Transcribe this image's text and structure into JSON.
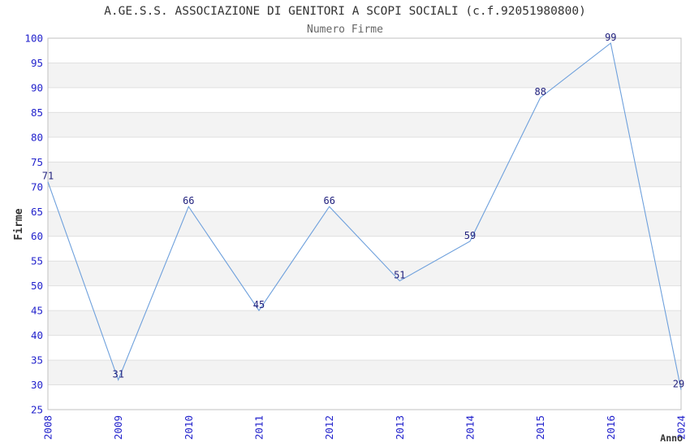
{
  "chart_data": {
    "type": "line",
    "title": "A.GE.S.S. ASSOCIAZIONE DI GENITORI A SCOPI SOCIALI (c.f.92051980800)",
    "subtitle": "Numero Firme",
    "xlabel": "Anno",
    "ylabel": "Firme",
    "categories": [
      "2008",
      "2009",
      "2010",
      "2011",
      "2012",
      "2013",
      "2014",
      "2015",
      "2016",
      "2024"
    ],
    "values": [
      71,
      31,
      66,
      45,
      66,
      51,
      59,
      88,
      99,
      29
    ],
    "ylim": [
      25,
      100
    ],
    "ytick_step": 5,
    "yticks": [
      25,
      30,
      35,
      40,
      45,
      50,
      55,
      60,
      65,
      70,
      75,
      80,
      85,
      90,
      95,
      100
    ],
    "grid": "horizontal gridlines with alternating shaded bands",
    "legend_position": "none",
    "x_tick_rotation": 90,
    "data_labels_visible": true,
    "colors": {
      "line": "#6EA0DC",
      "tick_label": "#2222CC",
      "data_label": "#22227E",
      "band": "#F3F3F3",
      "gridline": "#E0E0E0",
      "plot_border": "#C0C0C0",
      "title": "#333333",
      "subtitle": "#666666",
      "axis_title": "#333333",
      "background": "#FFFFFF"
    }
  }
}
